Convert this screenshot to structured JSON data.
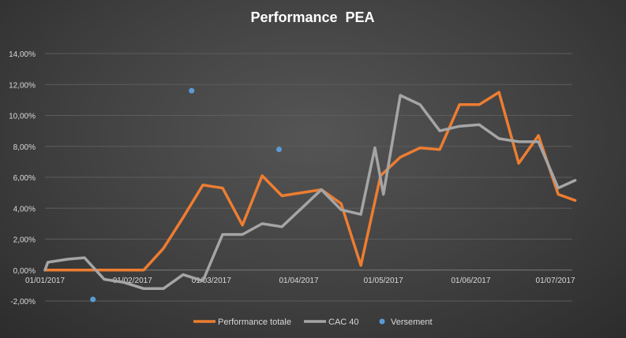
{
  "chart_data": {
    "type": "line",
    "title": "Performance  PEA",
    "xlabel": "",
    "ylabel": "",
    "ylim": [
      -0.02,
      0.14
    ],
    "y_ticks": [
      -0.02,
      0,
      0.02,
      0.04,
      0.06,
      0.08,
      0.1,
      0.12,
      0.14
    ],
    "y_tick_labels": [
      "-2,00%",
      "0,00%",
      "2,00%",
      "4,00%",
      "6,00%",
      "8,00%",
      "10,00%",
      "12,00%",
      "14,00%"
    ],
    "x_range": [
      "2017-01-01",
      "2017-07-07"
    ],
    "x_ticks": [
      "2017-01-01",
      "2017-02-01",
      "2017-03-01",
      "2017-04-01",
      "2017-05-01",
      "2017-06-01",
      "2017-07-01"
    ],
    "x_tick_labels": [
      "01/01/2017",
      "01/02/2017",
      "01/03/2017",
      "01/04/2017",
      "01/05/2017",
      "01/06/2017",
      "01/07/2017"
    ],
    "grid": true,
    "legend_position": "bottom",
    "series": [
      {
        "name": "Performance totale",
        "kind": "line",
        "color": "#ED7D31",
        "points": [
          [
            "2017-01-01",
            0.0
          ],
          [
            "2017-01-08",
            0.0
          ],
          [
            "2017-01-15",
            0.0
          ],
          [
            "2017-01-22",
            0.0
          ],
          [
            "2017-01-29",
            0.0
          ],
          [
            "2017-02-05",
            0.0
          ],
          [
            "2017-02-12",
            0.014
          ],
          [
            "2017-02-19",
            0.034
          ],
          [
            "2017-02-26",
            0.055
          ],
          [
            "2017-03-05",
            0.053
          ],
          [
            "2017-03-12",
            0.029
          ],
          [
            "2017-03-19",
            0.061
          ],
          [
            "2017-03-26",
            0.048
          ],
          [
            "2017-04-02",
            0.05
          ],
          [
            "2017-04-09",
            0.052
          ],
          [
            "2017-04-16",
            0.043
          ],
          [
            "2017-04-23",
            0.003
          ],
          [
            "2017-04-30",
            0.061
          ],
          [
            "2017-05-07",
            0.073
          ],
          [
            "2017-05-14",
            0.079
          ],
          [
            "2017-05-21",
            0.078
          ],
          [
            "2017-05-28",
            0.107
          ],
          [
            "2017-06-04",
            0.107
          ],
          [
            "2017-06-11",
            0.115
          ],
          [
            "2017-06-18",
            0.069
          ],
          [
            "2017-06-25",
            0.087
          ],
          [
            "2017-07-02",
            0.049
          ],
          [
            "2017-07-08",
            0.045
          ]
        ]
      },
      {
        "name": "CAC 40",
        "kind": "line",
        "color": "#A5A5A5",
        "points": [
          [
            "2017-01-01",
            0.0
          ],
          [
            "2017-01-02",
            0.005
          ],
          [
            "2017-01-09",
            0.007
          ],
          [
            "2017-01-15",
            0.008
          ],
          [
            "2017-01-22",
            -0.006
          ],
          [
            "2017-01-29",
            -0.008
          ],
          [
            "2017-02-05",
            -0.012
          ],
          [
            "2017-02-12",
            -0.012
          ],
          [
            "2017-02-19",
            -0.003
          ],
          [
            "2017-02-26",
            -0.007
          ],
          [
            "2017-03-05",
            0.023
          ],
          [
            "2017-03-12",
            0.023
          ],
          [
            "2017-03-19",
            0.03
          ],
          [
            "2017-03-26",
            0.028
          ],
          [
            "2017-04-02",
            0.04
          ],
          [
            "2017-04-09",
            0.052
          ],
          [
            "2017-04-16",
            0.039
          ],
          [
            "2017-04-23",
            0.036
          ],
          [
            "2017-04-28",
            0.079
          ],
          [
            "2017-05-01",
            0.049
          ],
          [
            "2017-05-07",
            0.113
          ],
          [
            "2017-05-14",
            0.107
          ],
          [
            "2017-05-21",
            0.09
          ],
          [
            "2017-05-28",
            0.093
          ],
          [
            "2017-06-04",
            0.094
          ],
          [
            "2017-06-11",
            0.085
          ],
          [
            "2017-06-18",
            0.083
          ],
          [
            "2017-06-25",
            0.083
          ],
          [
            "2017-07-02",
            0.053
          ],
          [
            "2017-07-08",
            0.058
          ]
        ]
      },
      {
        "name": "Versement",
        "kind": "scatter",
        "color": "#5B9BD5",
        "points": [
          [
            "2017-01-18",
            -0.019
          ],
          [
            "2017-02-22",
            0.116
          ],
          [
            "2017-03-25",
            0.078
          ]
        ]
      }
    ]
  }
}
